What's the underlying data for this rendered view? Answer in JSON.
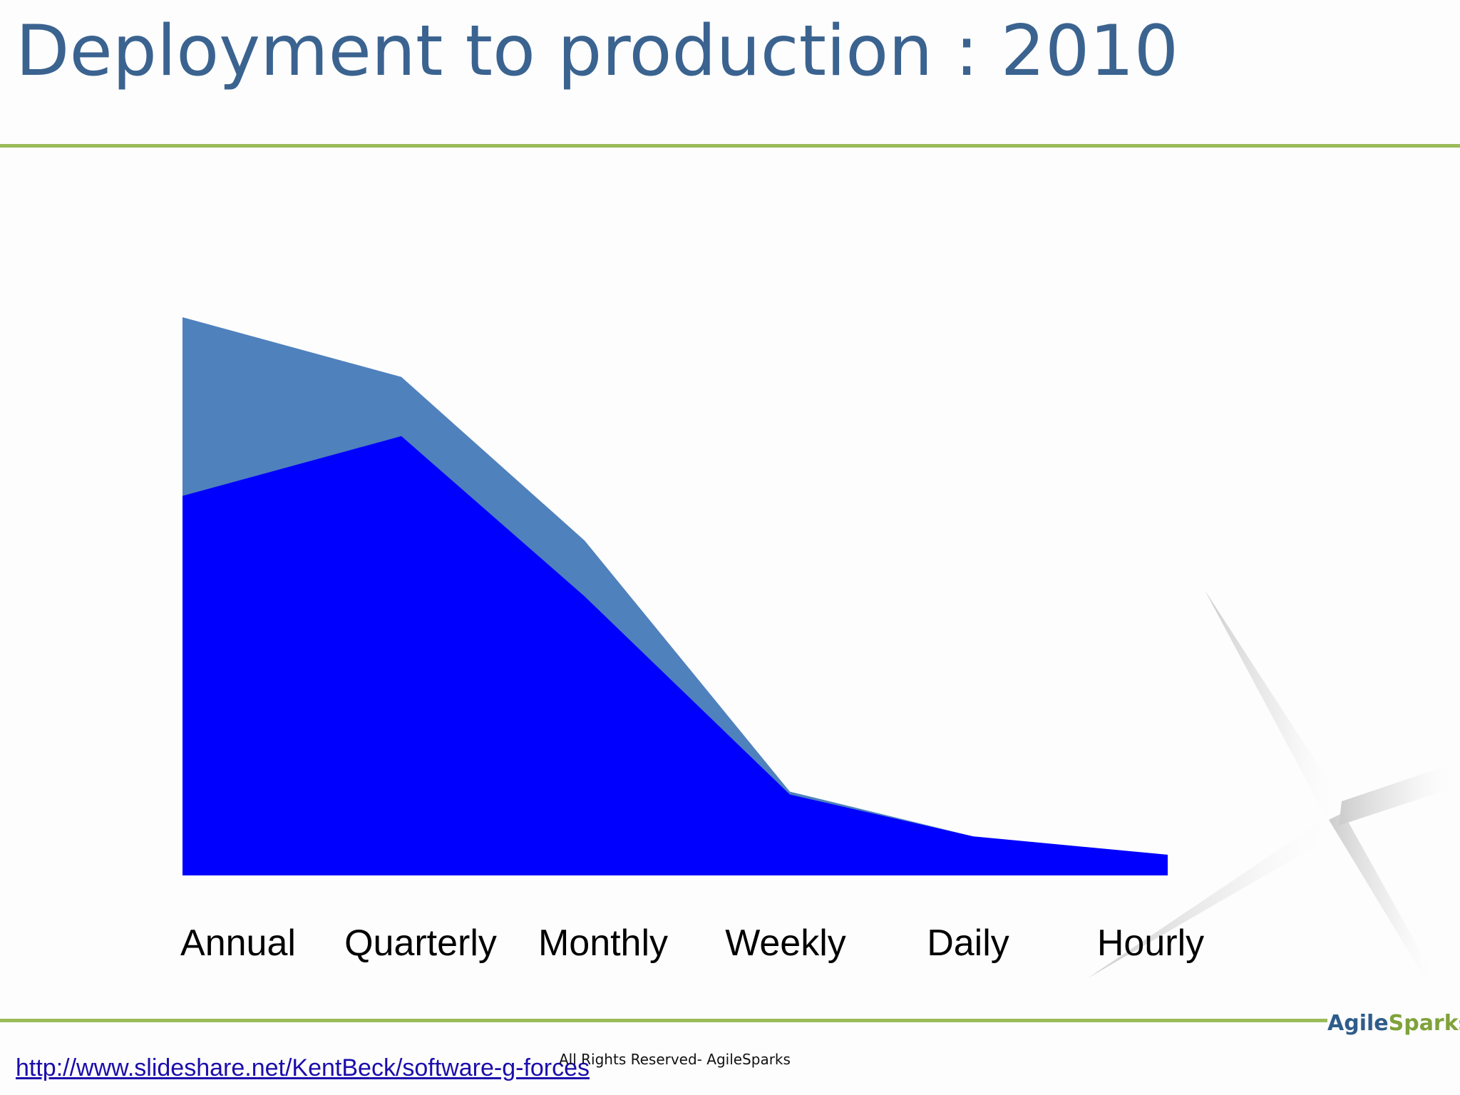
{
  "slide": {
    "title": "Deployment to production : 2010"
  },
  "colors": {
    "title": "#3b6390",
    "rule": "#9bbb59",
    "series_back": "#4f81bd",
    "series_front": "#0000ff"
  },
  "chart_data": {
    "type": "area",
    "categories": [
      "Annual",
      "Quarterly",
      "Monthly",
      "Weekly",
      "Daily",
      "Hourly"
    ],
    "series": [
      {
        "values": [
          100,
          89.3,
          60,
          15,
          7,
          3.7
        ],
        "color": "#4f81bd"
      },
      {
        "values": [
          68,
          78.7,
          50,
          14.5,
          7,
          3.7
        ],
        "color": "#0000ff"
      }
    ],
    "ylim": [
      0,
      100
    ],
    "grid": false,
    "legend": "none"
  },
  "footer": {
    "link_text": "http://www.slideshare.net/KentBeck/software-g-forces",
    "copyright": "All Rights Reserved- AgileSparks",
    "brand_part1": "Agile",
    "brand_part2": "Sparks"
  },
  "icons": {
    "logo_star": "sparkle-star-icon"
  }
}
